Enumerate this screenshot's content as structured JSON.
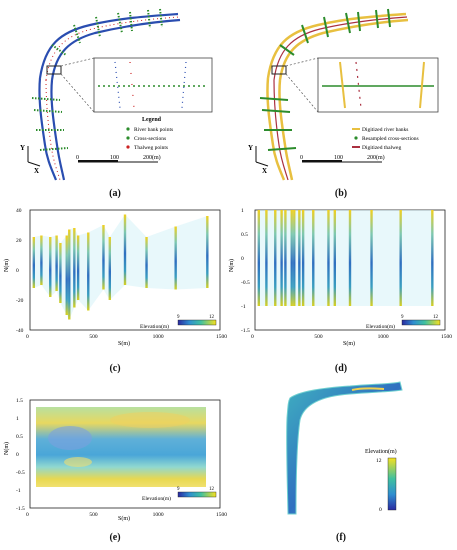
{
  "panel_a": {
    "caption": "(a)",
    "legend_title": "Legend",
    "legend_items": [
      {
        "label": "River bank points",
        "color": "#2c8c2c",
        "marker": "dot"
      },
      {
        "label": "Cross-sections",
        "color": "#2c8c2c",
        "marker": "dot"
      },
      {
        "label": "Thalweg points",
        "color": "#cc2222",
        "marker": "dot"
      }
    ],
    "scale_labels": [
      "0",
      "100",
      "200(m)"
    ],
    "axis_y": "Y",
    "axis_x": "X"
  },
  "panel_b": {
    "caption": "(b)",
    "legend_items": [
      {
        "label": "Digitized river banks",
        "color": "#e8c040",
        "marker": "line"
      },
      {
        "label": "Resampled cross-sections",
        "color": "#2c8c2c",
        "marker": "dot"
      },
      {
        "label": "Digitized thalweg",
        "color": "#aa3040",
        "marker": "line"
      }
    ],
    "scale_labels": [
      "0",
      "100",
      "200(m)"
    ],
    "axis_y": "Y",
    "axis_x": "X"
  },
  "chart_data": [
    {
      "id": "panel_c",
      "type": "bar",
      "caption": "(c)",
      "xlabel": "S(m)",
      "ylabel": "N(m)",
      "xlim": [
        0,
        1500
      ],
      "ylim": [
        -40,
        40
      ],
      "xticks": [
        "0",
        "500",
        "1000",
        "1500"
      ],
      "yticks": [
        "40",
        "20",
        "0",
        "-20",
        "-40"
      ],
      "colorbar_label": "Elevation(m)",
      "colorbar_ticks": [
        "9",
        "12"
      ],
      "sections": [
        {
          "s": 30,
          "top": 22,
          "bottom": -12
        },
        {
          "s": 90,
          "top": 23,
          "bottom": -10
        },
        {
          "s": 160,
          "top": 22,
          "bottom": -18
        },
        {
          "s": 210,
          "top": 23,
          "bottom": -14
        },
        {
          "s": 240,
          "top": 18,
          "bottom": -22
        },
        {
          "s": 290,
          "top": 23,
          "bottom": -30
        },
        {
          "s": 310,
          "top": 27,
          "bottom": -33
        },
        {
          "s": 350,
          "top": 28,
          "bottom": -25
        },
        {
          "s": 380,
          "top": 23,
          "bottom": -20
        },
        {
          "s": 460,
          "top": 25,
          "bottom": -27
        },
        {
          "s": 580,
          "top": 30,
          "bottom": -13
        },
        {
          "s": 630,
          "top": 22,
          "bottom": -20
        },
        {
          "s": 750,
          "top": 37,
          "bottom": -10
        },
        {
          "s": 920,
          "top": 22,
          "bottom": -12
        },
        {
          "s": 1150,
          "top": 29,
          "bottom": -13
        },
        {
          "s": 1400,
          "top": 36,
          "bottom": -12
        }
      ]
    },
    {
      "id": "panel_d",
      "type": "bar",
      "caption": "(d)",
      "xlabel": "S(m)",
      "ylabel": "N(m)",
      "xlim": [
        0,
        1500
      ],
      "ylim": [
        -1.5,
        1
      ],
      "xticks": [
        "0",
        "500",
        "1000",
        "1500"
      ],
      "yticks": [
        "1",
        "0.5",
        "0",
        "-0.5",
        "-1",
        "-1.5"
      ],
      "colorbar_label": "Elevation(m)",
      "colorbar_ticks": [
        "9",
        "12"
      ],
      "sections": [
        {
          "s": 30,
          "top": 1,
          "bottom": -1
        },
        {
          "s": 90,
          "top": 1,
          "bottom": -1
        },
        {
          "s": 160,
          "top": 1,
          "bottom": -1
        },
        {
          "s": 210,
          "top": 1,
          "bottom": -1
        },
        {
          "s": 240,
          "top": 1,
          "bottom": -1
        },
        {
          "s": 290,
          "top": 1,
          "bottom": -1
        },
        {
          "s": 310,
          "top": 1,
          "bottom": -1
        },
        {
          "s": 350,
          "top": 1,
          "bottom": -1
        },
        {
          "s": 380,
          "top": 1,
          "bottom": -1
        },
        {
          "s": 460,
          "top": 1,
          "bottom": -1
        },
        {
          "s": 580,
          "top": 1,
          "bottom": -1
        },
        {
          "s": 630,
          "top": 1,
          "bottom": -1
        },
        {
          "s": 750,
          "top": 1,
          "bottom": -1
        },
        {
          "s": 920,
          "top": 1,
          "bottom": -1
        },
        {
          "s": 1150,
          "top": 1,
          "bottom": -1
        },
        {
          "s": 1400,
          "top": 1,
          "bottom": -1
        }
      ]
    },
    {
      "id": "panel_e",
      "type": "heatmap",
      "caption": "(e)",
      "xlabel": "S(m)",
      "ylabel": "N(m)",
      "xlim": [
        0,
        1500
      ],
      "ylim": [
        -1.5,
        1.5
      ],
      "xticks": [
        "0",
        "500",
        "1000",
        "1500"
      ],
      "yticks": [
        "1.5",
        "1",
        "0.5",
        "0",
        "-0.5",
        "-1",
        "-1.5"
      ],
      "colorbar_label": "Elevation(m)",
      "colorbar_ticks": [
        "9",
        "12"
      ]
    }
  ],
  "panel_f": {
    "caption": "(f)",
    "colorbar_label": "Elevation(m)",
    "colorbar_ticks": [
      "12",
      "0"
    ]
  }
}
